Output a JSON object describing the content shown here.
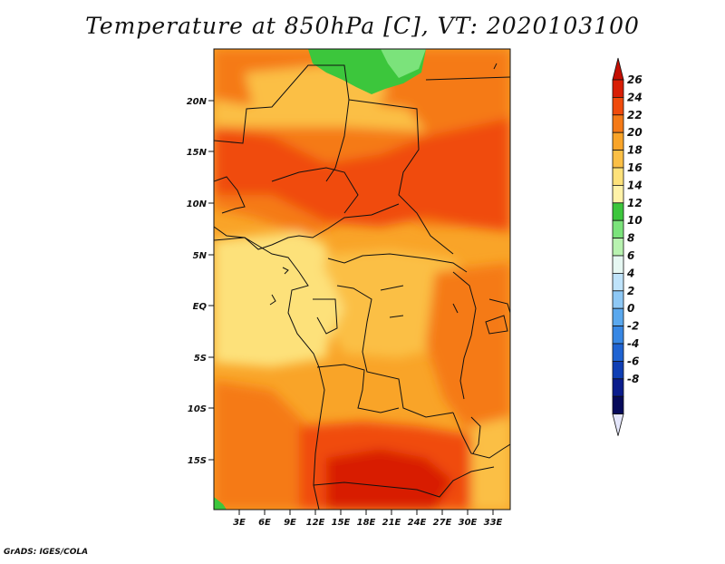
{
  "title": "Temperature at 850hPa [C], VT: 2020103100",
  "footer": "GrADS: IGES/COLA",
  "lat_ticks": [
    "20N",
    "15N",
    "10N",
    "5N",
    "EQ",
    "5S",
    "10S",
    "15S"
  ],
  "lon_ticks": [
    "3E",
    "6E",
    "9E",
    "12E",
    "15E",
    "18E",
    "21E",
    "24E",
    "27E",
    "30E",
    "33E"
  ],
  "colorbar": {
    "labels": [
      "26",
      "24",
      "22",
      "20",
      "18",
      "16",
      "14",
      "12",
      "10",
      "8",
      "6",
      "4",
      "2",
      "0",
      "-2",
      "-4",
      "-6",
      "-8"
    ],
    "colors": [
      "#d81e05",
      "#f04b0c",
      "#f57a17",
      "#f9a428",
      "#fbbf45",
      "#fde17a",
      "#fff2a8",
      "#3cc63c",
      "#7be37b",
      "#b8f2b0",
      "#e6f7f2",
      "#bfe3fa",
      "#8ec8f5",
      "#5aa8ee",
      "#3787e4",
      "#1f63d2",
      "#0f3eb4",
      "#0a1c8c",
      "#060a5a"
    ],
    "over_color": "#c40e02",
    "under_color": "#e4e6fb"
  }
}
